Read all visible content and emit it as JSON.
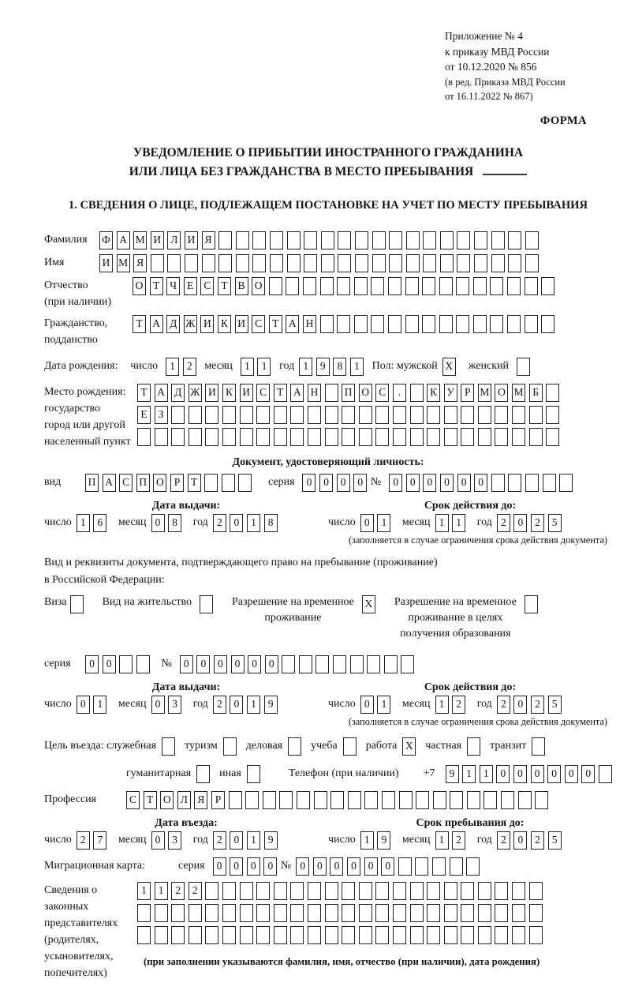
{
  "header": {
    "appendix_lines": [
      "Приложение № 4",
      "к приказу МВД России",
      "от 10.12.2020 № 856"
    ],
    "revision_lines": [
      "(в ред. Приказа МВД России",
      "от 16.11.2022 № 867)"
    ],
    "forma_label": "ФОРМА"
  },
  "title": {
    "line1": "УВЕДОМЛЕНИЕ О ПРИБЫТИИ ИНОСТРАННОГО ГРАЖДАНИНА",
    "line2": "ИЛИ ЛИЦА БЕЗ ГРАЖДАНСТВА В МЕСТО ПРЕБЫВАНИЯ"
  },
  "section1_heading": "1. СВЕДЕНИЯ О ЛИЦЕ, ПОДЛЕЖАЩЕМ ПОСТАНОВКЕ НА УЧЕТ ПО МЕСТУ ПРЕБЫВАНИЯ",
  "labels": {
    "surname": "Фамилия",
    "given_name": "Имя",
    "patronymic": "Отчество",
    "patronymic_note": "(при наличии)",
    "citizenship_1": "Гражданство,",
    "citizenship_2": "подданство",
    "birth_date": "Дата рождения:",
    "day": "число",
    "month": "месяц",
    "year": "год",
    "sex_male": "Пол: мужской",
    "sex_female": "женский",
    "birthplace_1": "Место рождения:",
    "birthplace_2": "государство",
    "birthplace_3": "город или другой",
    "birthplace_4": "населенный пункт",
    "id_doc_heading": "Документ, удостоверяющий личность:",
    "doc_type": "вид",
    "series": "серия",
    "number": "№",
    "issue_date": "Дата выдачи:",
    "valid_until": "Срок действия до:",
    "valid_note": "(заполняется в случае ограничения срока действия документа)",
    "stay_doc_line1": "Вид и реквизиты документа, подтверждающего право на пребывание (проживание)",
    "stay_doc_line2": "в Российской Федерации:",
    "visa": "Виза",
    "residence_permit": "Вид на жительство",
    "temp_residence_1": "Разрешение на временное",
    "temp_residence_2": "проживание",
    "temp_residence_edu_1": "Разрешение на временное",
    "temp_residence_edu_2": "проживание в целях",
    "temp_residence_edu_3": "получения образования",
    "purpose": "Цель въезда: служебная",
    "tourism": "туризм",
    "business": "деловая",
    "study": "учеба",
    "work": "работа",
    "private": "частная",
    "transit": "транзит",
    "humanitarian": "гуманитарная",
    "other": "иная",
    "phone": "Телефон (при наличии)",
    "phone_prefix": "+7",
    "profession": "Профессия",
    "entry_date": "Дата въезда:",
    "stay_until": "Срок пребывания до:",
    "migration_card": "Миграционная карта:",
    "representatives_1": "Сведения о",
    "representatives_2": "законных",
    "representatives_3": "представителях",
    "representatives_4": "(родителях,",
    "representatives_5": "усыновителях,",
    "representatives_6": "попечителях)",
    "representatives_note": "(при заполнении указываются фамилия, имя, отчество (при наличии), дата рождения)"
  },
  "cells": {
    "surname": {
      "value": "ФАМИЛИЯ",
      "count": 26
    },
    "given_name": {
      "value": "ИМЯ",
      "count": 26
    },
    "patronymic": {
      "value": "ОТЧЕСТВО",
      "count": 25
    },
    "citizenship": {
      "value": "ТАДЖИКИСТАН",
      "count": 25
    },
    "birth_day": {
      "value": "12",
      "count": 2
    },
    "birth_month": {
      "value": "11",
      "count": 2
    },
    "birth_year": {
      "value": "1981",
      "count": 4
    },
    "sex_male": {
      "value": "X",
      "count": 1
    },
    "sex_female": {
      "value": "",
      "count": 1
    },
    "birthplace_row1": {
      "value": "ТАДЖИКИСТАН ПОС. КУРМОМБ",
      "count": 25
    },
    "birthplace_row2": {
      "value": "ЕЗ",
      "count": 25
    },
    "birthplace_row3": {
      "value": "",
      "count": 25
    },
    "id_doc_type": {
      "value": "ПАСПОРТ",
      "count": 10
    },
    "id_doc_series": {
      "value": "0000",
      "count": 4
    },
    "id_doc_number": {
      "value": "000000",
      "count": 11
    },
    "id_issue_day": {
      "value": "16",
      "count": 2
    },
    "id_issue_month": {
      "value": "08",
      "count": 2
    },
    "id_issue_year": {
      "value": "2018",
      "count": 4
    },
    "id_expiry_day": {
      "value": "01",
      "count": 2
    },
    "id_expiry_month": {
      "value": "11",
      "count": 2
    },
    "id_expiry_year": {
      "value": "2025",
      "count": 4
    },
    "visa_cb": {
      "value": "",
      "count": 1
    },
    "residence_permit_cb": {
      "value": "",
      "count": 1
    },
    "temp_residence_cb": {
      "value": "X",
      "count": 1
    },
    "temp_residence_edu_cb": {
      "value": "",
      "count": 1
    },
    "stay_doc_series": {
      "value": "00",
      "count": 4
    },
    "stay_doc_number": {
      "value": "000000",
      "count": 14
    },
    "stay_issue_day": {
      "value": "01",
      "count": 2
    },
    "stay_issue_month": {
      "value": "03",
      "count": 2
    },
    "stay_issue_year": {
      "value": "2019",
      "count": 4
    },
    "stay_expiry_day": {
      "value": "01",
      "count": 2
    },
    "stay_expiry_month": {
      "value": "12",
      "count": 2
    },
    "stay_expiry_year": {
      "value": "2025",
      "count": 4
    },
    "purpose_official_cb": {
      "value": "",
      "count": 1
    },
    "purpose_tourism_cb": {
      "value": "",
      "count": 1
    },
    "purpose_business_cb": {
      "value": "",
      "count": 1
    },
    "purpose_study_cb": {
      "value": "",
      "count": 1
    },
    "purpose_work_cb": {
      "value": "X",
      "count": 1
    },
    "purpose_private_cb": {
      "value": "",
      "count": 1
    },
    "purpose_transit_cb": {
      "value": "",
      "count": 1
    },
    "purpose_humanitarian_cb": {
      "value": "",
      "count": 1
    },
    "purpose_other_cb": {
      "value": "",
      "count": 1
    },
    "phone": {
      "value": "911000000",
      "count": 10
    },
    "profession": {
      "value": "СТОЛЯР",
      "count": 25
    },
    "entry_day": {
      "value": "27",
      "count": 2
    },
    "entry_month": {
      "value": "03",
      "count": 2
    },
    "entry_year": {
      "value": "2019",
      "count": 4
    },
    "stay_until_day": {
      "value": "19",
      "count": 2
    },
    "stay_until_month": {
      "value": "12",
      "count": 2
    },
    "stay_until_year": {
      "value": "2025",
      "count": 4
    },
    "migcard_series": {
      "value": "0000",
      "count": 4
    },
    "migcard_number": {
      "value": "000000",
      "count": 11
    },
    "representatives_row1": {
      "value": "1122",
      "count": 24
    },
    "representatives_row2": {
      "value": "",
      "count": 24
    },
    "representatives_row3": {
      "value": "",
      "count": 24
    }
  }
}
